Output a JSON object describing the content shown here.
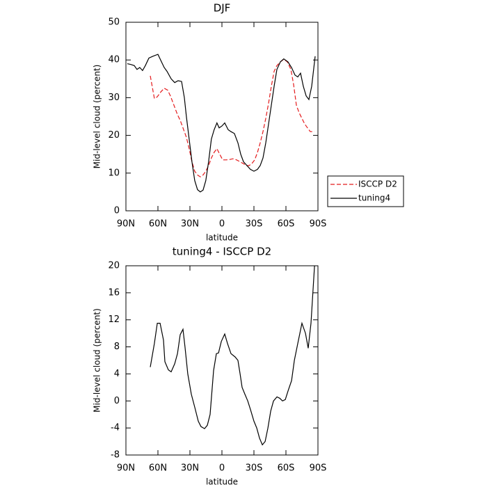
{
  "chart_data": [
    {
      "type": "line",
      "title": "DJF",
      "x_label": "latitude",
      "y_label": "Mid-level cloud (percent)",
      "xlim": [
        90,
        -90
      ],
      "xticks": [
        {
          "value": 90,
          "label": "90N"
        },
        {
          "value": 60,
          "label": "60N"
        },
        {
          "value": 30,
          "label": "30N"
        },
        0,
        {
          "value": -30,
          "label": "30S"
        },
        {
          "value": -60,
          "label": "60S"
        },
        {
          "value": -90,
          "label": "90S"
        }
      ],
      "ylim": [
        0,
        50
      ],
      "yticks": [
        0,
        10,
        20,
        30,
        40,
        50
      ],
      "legend": "outside-right",
      "series": [
        {
          "name": "ISCCP D2",
          "color": "#e41a1c",
          "dashed": true,
          "x": [
            67.2,
            63.3,
            60.7,
            57.4,
            54.1,
            50.9,
            48.3,
            45,
            41.7,
            39.1,
            36.5,
            33.3,
            30.7,
            28.1,
            25.5,
            22.9,
            20.3,
            17.7,
            15.1,
            12.5,
            9.9,
            7.3,
            4.7,
            2.1,
            -0.7,
            -3.9,
            -7.2,
            -10.4,
            -13.7,
            -17,
            -20.2,
            -22.8,
            -25.4,
            -28,
            -30.7,
            -33.3,
            -35.9,
            -38.5,
            -41.1,
            -43.7,
            -46.3,
            -48.9,
            -51.5,
            -54.8,
            -58,
            -61.3,
            -64.6,
            -67.2,
            -69.8,
            -72.4,
            -75,
            -77.6,
            -80.2,
            -82.8,
            -86.7
          ],
          "values": [
            35.8,
            29.8,
            30.2,
            31.5,
            32.5,
            32,
            30.5,
            28,
            25.5,
            24,
            22,
            19.5,
            16.5,
            13,
            10.5,
            9.5,
            9,
            9.5,
            10.5,
            12,
            14,
            15.5,
            16.5,
            15,
            13.5,
            13.5,
            13.6,
            13.8,
            13.5,
            13,
            12.5,
            12,
            12,
            12.5,
            13.5,
            15.5,
            18,
            21,
            24.5,
            28.5,
            33,
            37,
            38.5,
            39.5,
            40.2,
            39.5,
            37.5,
            33.5,
            28,
            26,
            24.5,
            23,
            22,
            21,
            21
          ]
        },
        {
          "name": "tuning4",
          "color": "#000000",
          "dashed": false,
          "x": [
            88.7,
            85.4,
            82.2,
            79.6,
            77,
            74.4,
            71.8,
            68.5,
            64.6,
            60,
            56.7,
            54.1,
            51.5,
            47.6,
            44.3,
            41.1,
            37.8,
            35.2,
            33.3,
            30.7,
            28.1,
            25.5,
            22.9,
            20.3,
            17.7,
            15.1,
            12.5,
            9.9,
            7.3,
            4.7,
            2.6,
            0,
            -2.6,
            -5.9,
            -8.5,
            -11.7,
            -15,
            -17.6,
            -20.2,
            -23.5,
            -26.7,
            -30,
            -33.3,
            -35.9,
            -38.5,
            -41.1,
            -43.7,
            -46.3,
            -48.9,
            -51.5,
            -54.8,
            -58,
            -61.9,
            -65.2,
            -68.5,
            -71.1,
            -73.7,
            -76.3,
            -78.9,
            -81.5,
            -84.1,
            -87.4
          ],
          "values": [
            39,
            38.8,
            38.5,
            37.5,
            38,
            37.2,
            38.5,
            40.5,
            41,
            41.5,
            39.5,
            38,
            37,
            35,
            34,
            34.5,
            34.3,
            30,
            25,
            19,
            13,
            8,
            5.6,
            5,
            5.5,
            8,
            13,
            19,
            21.5,
            23.3,
            22,
            22.5,
            23.3,
            21.5,
            21,
            20.5,
            18,
            15,
            13,
            12,
            11,
            10.5,
            11,
            12,
            14,
            18,
            23,
            28,
            33,
            37.5,
            39.5,
            40.3,
            39.5,
            38,
            36,
            35.5,
            36.5,
            33,
            30.5,
            29.5,
            33,
            41
          ]
        }
      ]
    },
    {
      "type": "line",
      "title": "tuning4 - ISCCP D2",
      "x_label": "latitude",
      "y_label": "Mid-level cloud (percent)",
      "xlim": [
        90,
        -90
      ],
      "xticks": [
        {
          "value": 90,
          "label": "90N"
        },
        {
          "value": 60,
          "label": "60N"
        },
        {
          "value": 30,
          "label": "30N"
        },
        0,
        {
          "value": -30,
          "label": "30S"
        },
        {
          "value": -60,
          "label": "60S"
        },
        {
          "value": -90,
          "label": "90S"
        }
      ],
      "ylim": [
        -8,
        20
      ],
      "yticks": [
        -8,
        -4,
        0,
        4,
        8,
        12,
        16,
        20
      ],
      "series": [
        {
          "color": "#000000",
          "dashed": false,
          "x": [
            67.2,
            63.3,
            60.6,
            58,
            54.8,
            53.5,
            50.2,
            47.6,
            44.3,
            41.7,
            39.1,
            36.5,
            34.6,
            32,
            28.7,
            25.4,
            22.2,
            19.6,
            16.3,
            13.7,
            11.1,
            7.8,
            5.2,
            3.2,
            0.6,
            -2.6,
            -5.2,
            -8.5,
            -12.4,
            -15,
            -17,
            -18.9,
            -21.5,
            -24.2,
            -26.8,
            -30,
            -32.6,
            -35.2,
            -37.9,
            -40.5,
            -43.1,
            -45.7,
            -48.3,
            -51.6,
            -54.2,
            -56.8,
            -59.4,
            -62,
            -65.3,
            -67.9,
            -71.1,
            -75,
            -78.3,
            -80.9,
            -83.5,
            -86.8
          ],
          "values": [
            5,
            8.5,
            11.5,
            11.5,
            9,
            5.8,
            4.6,
            4.3,
            5.5,
            7,
            9.8,
            10.6,
            8,
            4,
            1,
            -1,
            -3,
            -3.8,
            -4.1,
            -3.6,
            -2,
            4.5,
            7,
            7.1,
            8.8,
            9.9,
            8.5,
            7,
            6.5,
            6,
            4,
            2,
            1,
            0,
            -1.3,
            -3,
            -4,
            -5.5,
            -6.5,
            -6,
            -4,
            -1.5,
            0,
            0.6,
            0.4,
            0,
            0.2,
            1.5,
            3,
            6,
            8.5,
            11.5,
            10,
            7.8,
            11.5,
            20
          ]
        }
      ]
    }
  ]
}
